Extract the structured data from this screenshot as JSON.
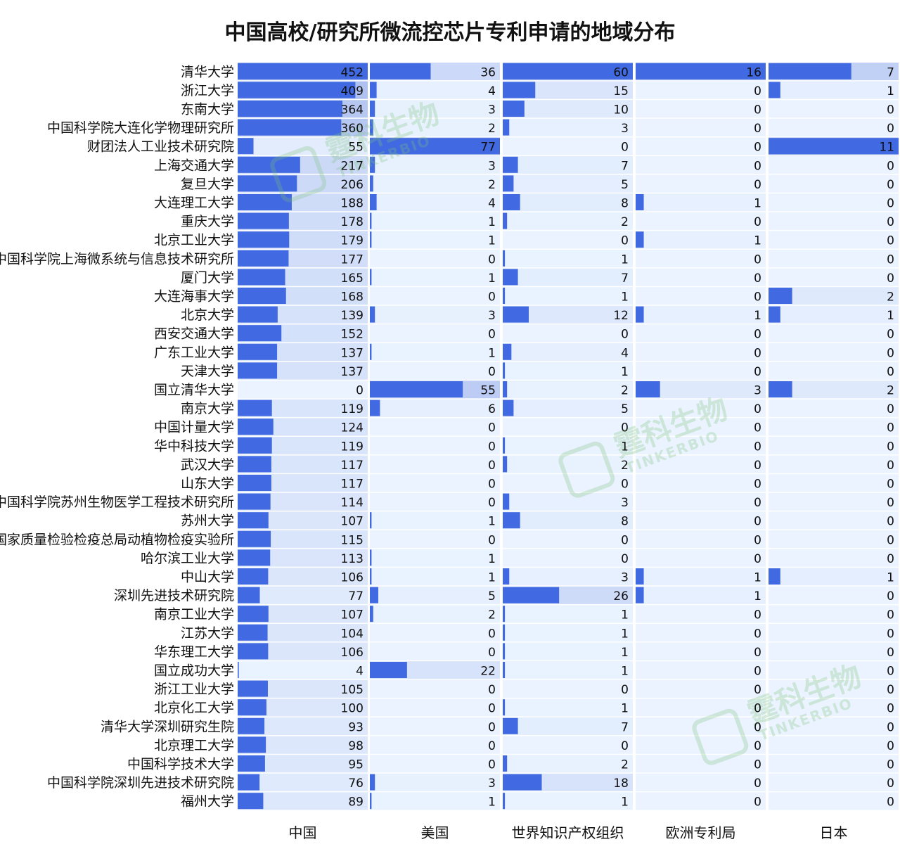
{
  "chart_data": {
    "type": "bar",
    "title": "中国高校/研究所微流控芯片专利申请的地域分布",
    "categories": [
      "清华大学",
      "浙江大学",
      "东南大学",
      "中国科学院大连化学物理研究所",
      "财团法人工业技术研究院",
      "上海交通大学",
      "复旦大学",
      "大连理工大学",
      "重庆大学",
      "北京工业大学",
      "中国科学院上海微系统与信息技术研究所",
      "厦门大学",
      "大连海事大学",
      "北京大学",
      "西安交通大学",
      "广东工业大学",
      "天津大学",
      "国立清华大学",
      "南京大学",
      "中国计量大学",
      "华中科技大学",
      "武汉大学",
      "山东大学",
      "中国科学院苏州生物医学工程技术研究所",
      "苏州大学",
      "国家质量检验检疫总局动植物检疫实验所",
      "哈尔滨工业大学",
      "中山大学",
      "深圳先进技术研究院",
      "南京工业大学",
      "江苏大学",
      "华东理工大学",
      "国立成功大学",
      "浙江工业大学",
      "北京化工大学",
      "清华大学深圳研究生院",
      "北京理工大学",
      "中国科学技术大学",
      "中国科学院深圳先进技术研究院",
      "福州大学"
    ],
    "series": [
      {
        "name": "中国",
        "values": [
          452,
          409,
          364,
          360,
          55,
          217,
          206,
          188,
          178,
          179,
          177,
          165,
          168,
          139,
          152,
          137,
          137,
          0,
          119,
          124,
          119,
          117,
          117,
          114,
          107,
          115,
          113,
          106,
          77,
          107,
          104,
          106,
          4,
          105,
          100,
          93,
          98,
          95,
          76,
          89
        ]
      },
      {
        "name": "美国",
        "values": [
          36,
          4,
          3,
          2,
          77,
          3,
          2,
          4,
          1,
          1,
          0,
          1,
          0,
          3,
          0,
          1,
          0,
          55,
          6,
          0,
          0,
          0,
          0,
          0,
          1,
          0,
          1,
          1,
          5,
          2,
          0,
          0,
          22,
          0,
          0,
          0,
          0,
          0,
          3,
          1
        ]
      },
      {
        "name": "世界知识产权组织",
        "values": [
          60,
          15,
          10,
          3,
          0,
          7,
          5,
          8,
          2,
          0,
          1,
          7,
          1,
          12,
          0,
          4,
          1,
          2,
          5,
          0,
          1,
          2,
          0,
          3,
          8,
          0,
          0,
          3,
          26,
          1,
          1,
          1,
          1,
          0,
          1,
          7,
          0,
          2,
          18,
          1
        ]
      },
      {
        "name": "欧洲专利局",
        "values": [
          16,
          0,
          0,
          0,
          0,
          0,
          0,
          1,
          0,
          1,
          0,
          0,
          0,
          1,
          0,
          0,
          0,
          3,
          0,
          0,
          0,
          0,
          0,
          0,
          0,
          0,
          0,
          1,
          1,
          0,
          0,
          0,
          0,
          0,
          0,
          0,
          0,
          0,
          0,
          0
        ]
      },
      {
        "name": "日本",
        "values": [
          7,
          1,
          0,
          0,
          11,
          0,
          0,
          0,
          0,
          0,
          0,
          0,
          2,
          1,
          0,
          0,
          0,
          2,
          0,
          0,
          0,
          0,
          0,
          0,
          0,
          0,
          0,
          1,
          0,
          0,
          0,
          0,
          0,
          0,
          0,
          0,
          0,
          0,
          0,
          0
        ]
      }
    ],
    "colors": {
      "bar": "#4169e1",
      "bg_high": "#a9bcef",
      "bg_low": "#eaf3ff",
      "text": "#111111"
    },
    "watermark": {
      "name": "霆科生物",
      "sub": "TINKERBIO",
      "color": "#7cc27a"
    },
    "legend": "none",
    "grid": false
  }
}
